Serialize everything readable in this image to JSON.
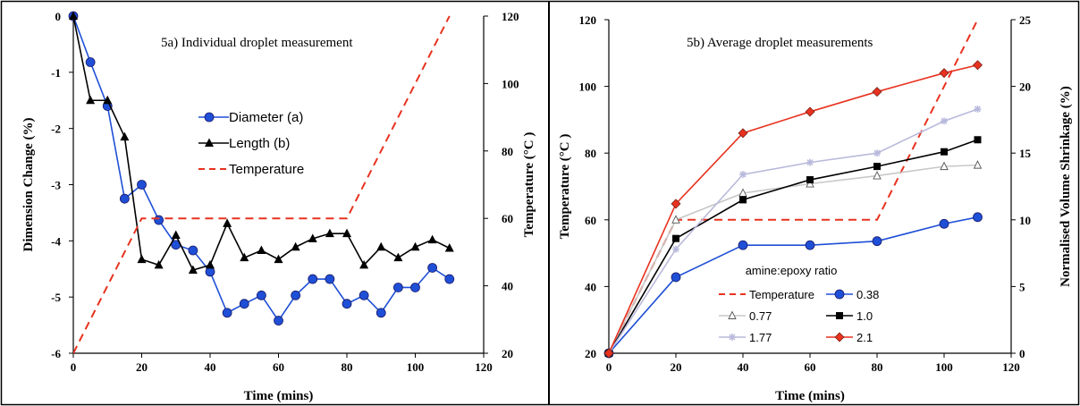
{
  "chart_data": [
    {
      "type": "line",
      "title": "5a) Individual droplet measurement",
      "xlabel": "Time (mins)",
      "ylabel": "Dimension Change (%)",
      "y2label": "Temperature (°C )",
      "xlim": [
        0,
        120
      ],
      "ylim": [
        -6,
        0
      ],
      "y2lim": [
        20,
        120
      ],
      "xticks": [
        "0",
        "20",
        "40",
        "60",
        "80",
        "100",
        "120"
      ],
      "yticks": [
        "0",
        "-1",
        "-2",
        "-3",
        "-4",
        "-5",
        "-6"
      ],
      "y2ticks": [
        "120",
        "100",
        "80",
        "60",
        "40",
        "20"
      ],
      "grid": false,
      "legend_position": "center",
      "series": [
        {
          "name": "Diameter (a)",
          "axis": "left",
          "color": "#1f4fd6",
          "marker": "circle",
          "x": [
            0,
            5,
            10,
            15,
            20,
            25,
            30,
            35,
            40,
            45,
            50,
            55,
            60,
            65,
            70,
            75,
            80,
            85,
            90,
            95,
            100,
            105,
            110
          ],
          "y": [
            0,
            -0.82,
            -1.6,
            -3.25,
            -3.0,
            -3.63,
            -4.07,
            -4.17,
            -4.55,
            -5.28,
            -5.12,
            -4.97,
            -5.42,
            -4.97,
            -4.68,
            -4.68,
            -5.12,
            -4.97,
            -5.28,
            -4.83,
            -4.83,
            -4.48,
            -4.68
          ]
        },
        {
          "name": "Length (b)",
          "axis": "left",
          "color": "#000000",
          "marker": "triangle",
          "x": [
            0,
            5,
            10,
            15,
            20,
            25,
            30,
            35,
            40,
            45,
            50,
            55,
            60,
            65,
            70,
            75,
            80,
            85,
            90,
            95,
            100,
            105,
            110
          ],
          "y": [
            0,
            -1.5,
            -1.5,
            -2.15,
            -4.33,
            -4.43,
            -3.9,
            -4.52,
            -4.43,
            -3.69,
            -4.3,
            -4.17,
            -4.33,
            -4.11,
            -3.96,
            -3.87,
            -3.87,
            -4.43,
            -4.11,
            -4.3,
            -4.11,
            -3.98,
            -4.13
          ]
        },
        {
          "name": "Temperature",
          "axis": "right",
          "color": "#e8321f",
          "dash": true,
          "x": [
            0,
            20,
            80,
            110
          ],
          "y": [
            20,
            60,
            60,
            120
          ]
        }
      ]
    },
    {
      "type": "line",
      "title": "5b) Average droplet measurements",
      "xlabel": "Time (mins)",
      "ylabel": "Temperature (°C )",
      "y2label": "Normalised Volume Shrinkage (%)",
      "xlim": [
        0,
        120
      ],
      "ylim": [
        20,
        120
      ],
      "y2lim": [
        0,
        25
      ],
      "xticks": [
        "0",
        "20",
        "40",
        "60",
        "80",
        "100",
        "120"
      ],
      "yticks": [
        "120",
        "100",
        "80",
        "60",
        "40",
        "20"
      ],
      "y2ticks": [
        "25",
        "20",
        "15",
        "10",
        "5",
        "0"
      ],
      "grid": false,
      "legend_title": "amine:epoxy ratio",
      "legend_position": "bottom-center",
      "series": [
        {
          "name": "Temperature",
          "axis": "left",
          "color": "#e8321f",
          "dash": true,
          "x": [
            0,
            20,
            80,
            110
          ],
          "y": [
            20,
            60,
            60,
            120
          ]
        },
        {
          "name": "0.38",
          "axis": "right",
          "color": "#1f4fd6",
          "marker": "circle",
          "x": [
            0,
            20,
            40,
            60,
            80,
            100,
            110
          ],
          "y": [
            0,
            5.7,
            8.1,
            8.1,
            8.4,
            9.7,
            10.2
          ]
        },
        {
          "name": "0.77",
          "axis": "right",
          "color": "#c8c8c8",
          "marker": "triangle-open",
          "x": [
            0,
            20,
            40,
            60,
            80,
            100,
            110
          ],
          "y": [
            0,
            10.0,
            12.0,
            12.7,
            13.3,
            14.0,
            14.1
          ]
        },
        {
          "name": "1.0",
          "axis": "right",
          "color": "#000000",
          "marker": "square",
          "x": [
            0,
            20,
            40,
            60,
            80,
            100,
            110
          ],
          "y": [
            0,
            8.6,
            11.5,
            13.0,
            14.0,
            15.1,
            16.0
          ]
        },
        {
          "name": "1.77",
          "axis": "right",
          "color": "#b9b9dc",
          "marker": "star",
          "x": [
            0,
            20,
            40,
            60,
            80,
            100,
            110
          ],
          "y": [
            0,
            7.8,
            13.4,
            14.3,
            15.0,
            17.4,
            18.3
          ]
        },
        {
          "name": "2.1",
          "axis": "right",
          "color": "#e8321f",
          "marker": "diamond",
          "x": [
            0,
            20,
            40,
            60,
            80,
            100,
            110
          ],
          "y": [
            0,
            11.2,
            16.5,
            18.1,
            19.6,
            21.0,
            21.6
          ]
        }
      ]
    }
  ]
}
